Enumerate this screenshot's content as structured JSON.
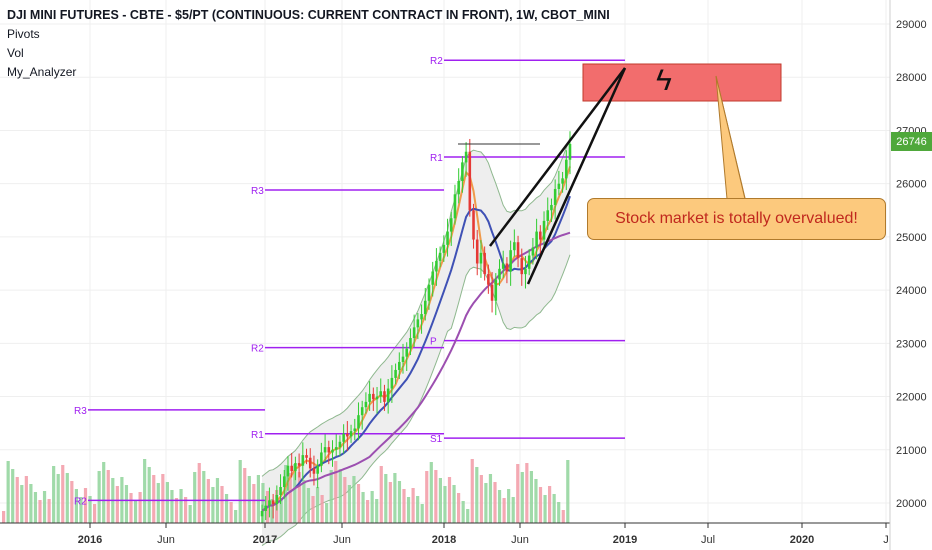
{
  "legend": {
    "title": "DJI MINI FUTURES - CBTE - $5/PT (CONTINUOUS: CURRENT CONTRACT IN FRONT), 1W, CBOT_MINI",
    "indicators": [
      "Pivots",
      "Vol",
      "My_Analyzer"
    ]
  },
  "annotation": "Stock market is totally overvalued!",
  "last_price": "26746",
  "colors": {
    "up": "#33cc33",
    "down": "#e53935",
    "ma_fast": "#ef9a4b",
    "ma_mid": "#3f51b5",
    "ma_slow": "#9c4fb0",
    "pivot": "#a020f0",
    "band_fill": "#eeeeee",
    "target_box": "#f26d6d"
  },
  "chart_data": {
    "type": "candlestick",
    "y_axis": {
      "range": [
        19400,
        29300
      ],
      "ticks": [
        20000,
        21000,
        22000,
        23000,
        24000,
        25000,
        26000,
        27000,
        28000,
        29000
      ]
    },
    "x_axis": {
      "ticks": [
        "2016",
        "Jun",
        "2017",
        "Jun",
        "2018",
        "Jun",
        "2019",
        "Jul",
        "2020",
        "J"
      ]
    },
    "pivot_levels": [
      {
        "label": "R2",
        "value": 20050
      },
      {
        "label": "R3",
        "value": 21750
      },
      {
        "label": "R1",
        "value": 21300
      },
      {
        "label": "R2",
        "value": 22920
      },
      {
        "label": "R3",
        "value": 25880
      },
      {
        "label": "P",
        "value": 23050
      },
      {
        "label": "S1",
        "value": 21220
      },
      {
        "label": "R1",
        "value": 26500
      },
      {
        "label": "R2",
        "value": 28320
      }
    ],
    "closes": [
      19850,
      19950,
      20050,
      19980,
      20150,
      20300,
      20500,
      20700,
      20600,
      20750,
      20700,
      20900,
      20850,
      20650,
      20550,
      20700,
      20950,
      21050,
      20950,
      21000,
      21050,
      21150,
      21300,
      21250,
      21350,
      21400,
      21650,
      21800,
      21900,
      22050,
      21950,
      22000,
      22100,
      21900,
      22150,
      22350,
      22500,
      22650,
      22750,
      22900,
      23100,
      23300,
      23450,
      23550,
      23800,
      24100,
      24350,
      24550,
      24700,
      24850,
      25100,
      25350,
      25800,
      26050,
      26400,
      26600,
      25500,
      24950,
      24500,
      24700,
      24300,
      24100,
      23800,
      24200,
      24400,
      24500,
      24350,
      24750,
      24900,
      24600,
      24300,
      24400,
      24650,
      24800,
      25100,
      24950,
      25300,
      25500,
      25600,
      25900,
      26000,
      26100,
      26450,
      26746
    ],
    "volume_note": "weekly volume bars at bottom"
  }
}
